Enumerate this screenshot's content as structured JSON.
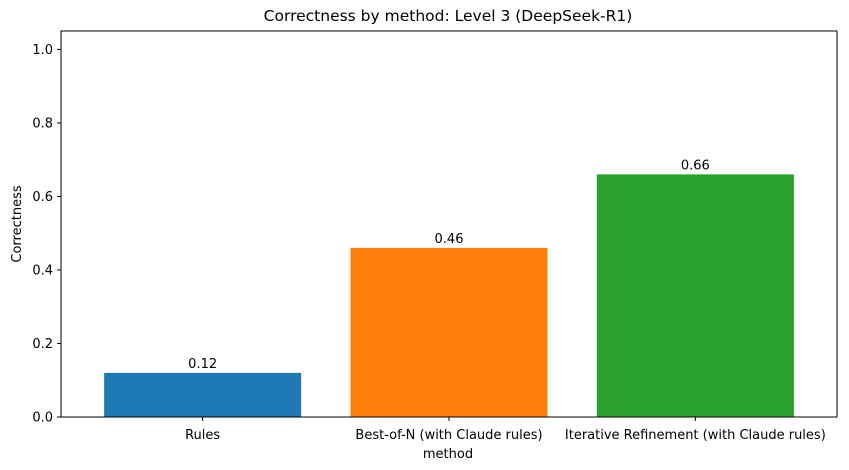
{
  "chart_data": {
    "type": "bar",
    "title": "Correctness by method: Level 3 (DeepSeek-R1)",
    "xlabel": "method",
    "ylabel": "Correctness",
    "categories": [
      "Rules",
      "Best-of-N (with Claude rules)",
      "Iterative Refinement (with Claude rules)"
    ],
    "values": [
      0.12,
      0.46,
      0.66
    ],
    "value_labels": [
      "0.12",
      "0.46",
      "0.66"
    ],
    "colors": [
      "#1f77b4",
      "#ff7f0e",
      "#2ca02c"
    ],
    "ylim": [
      0,
      1.05
    ],
    "yticks": [
      0.0,
      0.2,
      0.4,
      0.6,
      0.8,
      1.0
    ],
    "ytick_labels": [
      "0.0",
      "0.2",
      "0.4",
      "0.6",
      "0.8",
      "1.0"
    ],
    "grid": false,
    "legend": "none"
  }
}
